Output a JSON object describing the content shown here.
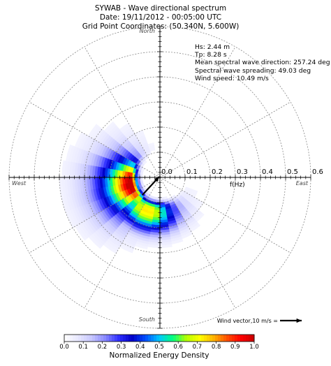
{
  "header": {
    "title": "SYWAB - Wave directional spectrum",
    "date": "Date: 19/11/2012 - 00:05:00 UTC",
    "coords": "Grid Point Coordinates: (50.340N, 5.600W)"
  },
  "info": {
    "hs": "Hs: 2.44 m",
    "tp": "Tp: 8.28 s",
    "mean_dir": "Mean spectral wave direction: 257.24 deg",
    "spreading": "Spectral wave spreading: 49.03 deg",
    "wind": "Wind speed: 10.49 m/s"
  },
  "colors": {
    "grid": "#888888",
    "colormap": [
      "#ffffff",
      "#e8e8ff",
      "#c8c8ff",
      "#8a8aff",
      "#3030ff",
      "#0000c8",
      "#0050ff",
      "#00c8ff",
      "#00ff80",
      "#b4ff00",
      "#ffff00",
      "#ffb400",
      "#ff5000",
      "#ff0000",
      "#c80000"
    ]
  },
  "chart_data": {
    "type": "heatmap",
    "projection": "polar",
    "compass_labels": {
      "north": "North",
      "east": "East",
      "south": "South",
      "west": "West"
    },
    "radial_axis": {
      "label": "f(Hz)",
      "ticks": [
        "0.0",
        "0.1",
        "0.2",
        "0.3",
        "0.4",
        "0.5",
        "0.6"
      ],
      "range": [
        0,
        0.6
      ]
    },
    "spectrum": {
      "peak_frequency_hz": 0.12,
      "peak_direction_deg": 257,
      "direction_spread_deg": 49,
      "secondary_lobe_direction_deg": 200,
      "max_frequency_hz": 0.52
    },
    "wind_arrow": {
      "direction_deg": 225,
      "speed_ms": 10.49
    },
    "wind_legend": "Wind vector,10 m/s =",
    "colorbar": {
      "label": "Normalized Energy Density",
      "ticks": [
        "0.0",
        "0.1",
        "0.2",
        "0.3",
        "0.4",
        "0.5",
        "0.6",
        "0.7",
        "0.8",
        "0.9",
        "1.0"
      ],
      "range": [
        0,
        1
      ]
    }
  }
}
